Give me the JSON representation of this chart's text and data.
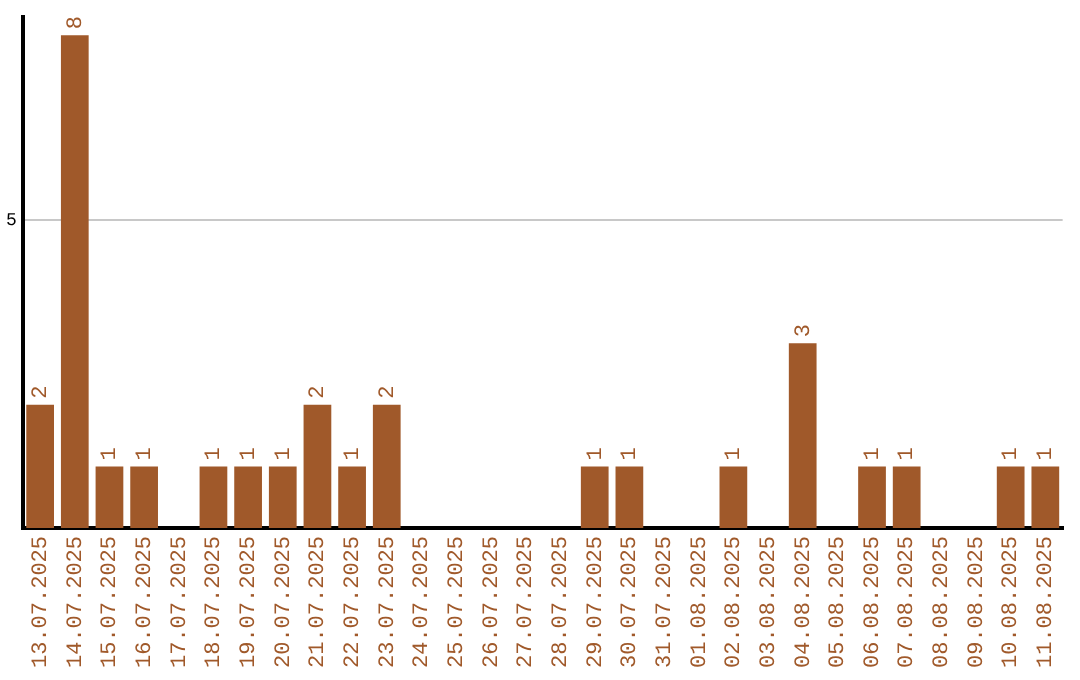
{
  "chart_data": {
    "type": "bar",
    "categories": [
      "13.07.2025",
      "14.07.2025",
      "15.07.2025",
      "16.07.2025",
      "17.07.2025",
      "18.07.2025",
      "19.07.2025",
      "20.07.2025",
      "21.07.2025",
      "22.07.2025",
      "23.07.2025",
      "24.07.2025",
      "25.07.2025",
      "26.07.2025",
      "27.07.2025",
      "28.07.2025",
      "29.07.2025",
      "30.07.2025",
      "31.07.2025",
      "01.08.2025",
      "02.08.2025",
      "03.08.2025",
      "04.08.2025",
      "05.08.2025",
      "06.08.2025",
      "07.08.2025",
      "08.08.2025",
      "09.08.2025",
      "10.08.2025",
      "11.08.2025"
    ],
    "values": [
      2,
      8,
      1,
      1,
      0,
      1,
      1,
      1,
      2,
      1,
      2,
      0,
      0,
      0,
      0,
      0,
      1,
      1,
      0,
      0,
      1,
      0,
      3,
      0,
      1,
      1,
      0,
      0,
      1,
      1
    ],
    "value_labels": [
      "2",
      "8",
      "1",
      "1",
      null,
      "1",
      "1",
      "1",
      "2",
      "1",
      "2",
      null,
      null,
      null,
      null,
      null,
      "1",
      "1",
      null,
      null,
      "1",
      null,
      "3",
      null,
      "1",
      "1",
      null,
      null,
      "1",
      "1"
    ],
    "color": "#a0592a",
    "ylim": [
      0,
      8.3
    ],
    "yticks": [
      5
    ],
    "grid": "y",
    "legend": false
  }
}
